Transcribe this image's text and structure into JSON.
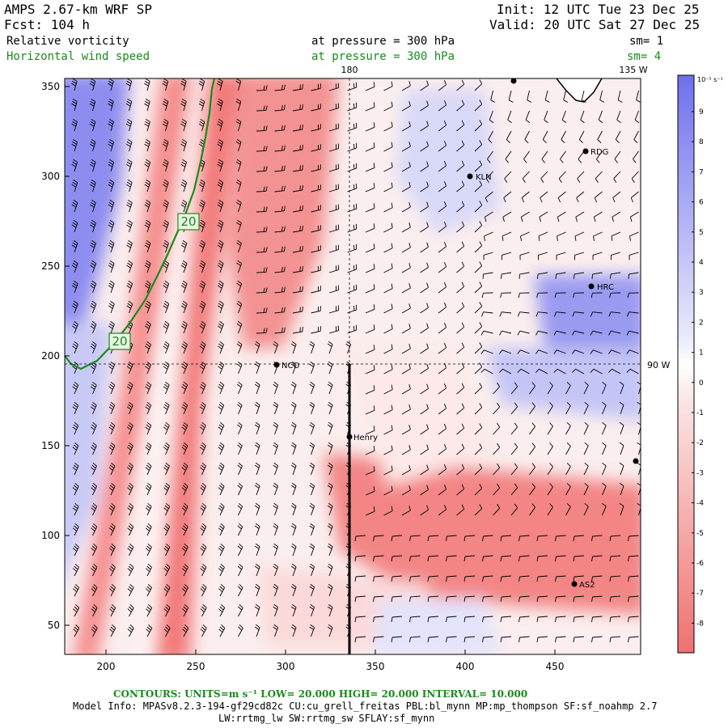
{
  "header": {
    "model": "AMPS 2.67-km WRF SP",
    "fcst": "Fcst:  104 h",
    "init": "Init: 12 UTC Tue 23 Dec 25",
    "valid": "Valid: 20 UTC Sat 27 Dec 25",
    "field1": "Relative vorticity",
    "field2": "Horizontal wind speed",
    "pressure1": "at pressure =  300 hPa",
    "pressure2": "at pressure =  300 hPa",
    "sm1": "sm= 1",
    "sm2": "sm= 4"
  },
  "map": {
    "lon_top_180": "180",
    "lon_top_135w": "135 W",
    "lon_right_90w": "90 W",
    "stations": [
      "RDG",
      "KLN",
      "HRC",
      "NCO",
      "Henry",
      "AS2"
    ],
    "contour_labels": [
      "20",
      "20"
    ],
    "x_ticks": [
      "200",
      "250",
      "300",
      "350",
      "400",
      "450"
    ],
    "y_ticks": [
      "350",
      "300",
      "250",
      "200",
      "150",
      "100",
      "50"
    ]
  },
  "colorbar": {
    "unit_label": "10⁻⁵ s⁻¹",
    "labels": [
      "9",
      "8",
      "7",
      "6",
      "5",
      "4",
      "3",
      "2",
      "1",
      "0",
      "-1",
      "-2",
      "-3",
      "-4",
      "-5",
      "-6",
      "-7",
      "-8"
    ],
    "colors": {
      "pos_strong": "#7b7bf0",
      "neutral": "#ffffff",
      "neg_strong": "#f07878"
    }
  },
  "footer": {
    "contours": "CONTOURS:  UNITS=m s⁻¹  LOW=  20.000      HIGH=  20.000      INTERVAL=   10.000",
    "model_info": "Model Info: MPASv8.2.3-194-gf29cd82c CU:cu_grell_freitas PBL:bl_mynn MP:mp_thompson SF:sf_noahmp 2.7",
    "model_info2": "LW:rrtmg_lw SW:rrtmg_sw SFLAY:sf_mynn"
  }
}
